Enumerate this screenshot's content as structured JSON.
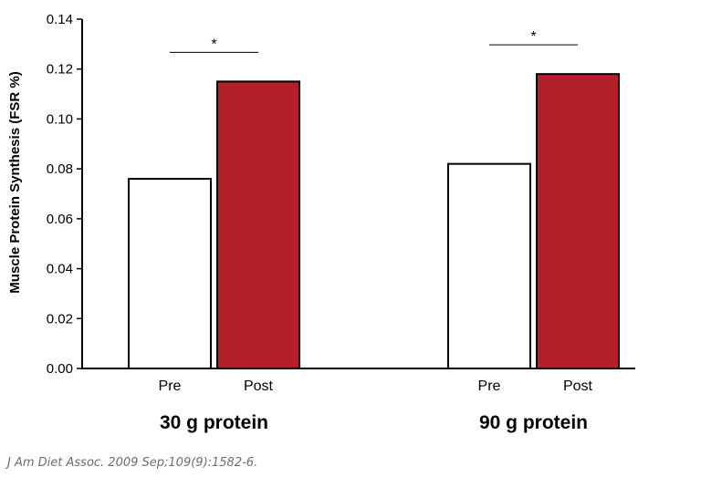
{
  "chart_data": {
    "type": "bar",
    "title": "",
    "ylabel": "Muscle Protein Synthesis (FSR %)",
    "ylim": [
      0,
      0.14
    ],
    "yticks": [
      "0.00",
      "0.02",
      "0.04",
      "0.06",
      "0.08",
      "0.10",
      "0.12",
      "0.14"
    ],
    "grid": false,
    "legend": "none",
    "groups": [
      {
        "label": "30 g protein",
        "bars": [
          {
            "label": "Pre",
            "value": 0.076,
            "color": "#ffffff"
          },
          {
            "label": "Post",
            "value": 0.115,
            "color": "#b3202a"
          }
        ],
        "significance": "*"
      },
      {
        "label": "90 g protein",
        "bars": [
          {
            "label": "Pre",
            "value": 0.082,
            "color": "#ffffff"
          },
          {
            "label": "Post",
            "value": 0.118,
            "color": "#b3202a"
          }
        ],
        "significance": "*"
      }
    ]
  },
  "citation": "J Am Diet Assoc. 2009 Sep;109(9):1582-6."
}
